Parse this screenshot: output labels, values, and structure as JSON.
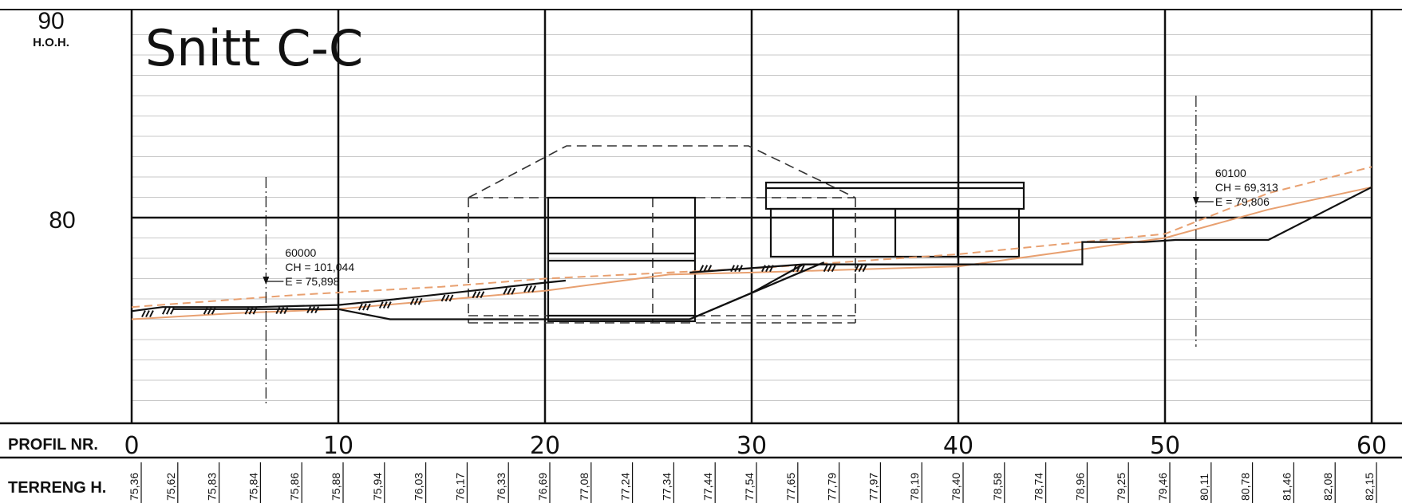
{
  "title": "Snitt C-C",
  "y_axis": {
    "top_value": "90",
    "unit": "H.O.H.",
    "mid_value": "80",
    "range": [
      70,
      90
    ]
  },
  "x_axis": {
    "label": "PROFIL NR.",
    "range": [
      0,
      60
    ],
    "ticks": [
      "0",
      "10",
      "20",
      "30",
      "40",
      "50",
      "60"
    ]
  },
  "terrain_row": {
    "label": "TERRENG H.",
    "values": [
      "75,36",
      "75,62",
      "75,83",
      "75,84",
      "75,86",
      "75,88",
      "75,94",
      "76,03",
      "76,17",
      "76,33",
      "76,69",
      "77,08",
      "77,24",
      "77,34",
      "77,44",
      "77,54",
      "77,65",
      "77,79",
      "77,97",
      "78,19",
      "78,40",
      "78,58",
      "78,74",
      "78,96",
      "79,25",
      "79,46",
      "80,11",
      "80,78",
      "81,46",
      "82,08",
      "82,15"
    ]
  },
  "annotations": [
    {
      "name": "marker-60000",
      "station": 6.5,
      "lines": [
        "60000",
        "CH = 101,044",
        "E = 75,898"
      ]
    },
    {
      "name": "marker-60100",
      "station": 51.5,
      "lines": [
        "60100",
        "CH = 69,313",
        "E = 79,806"
      ]
    }
  ],
  "colors": {
    "line": "#111111",
    "grid": "#c8c8c8",
    "terrain_orange": "#e8a070",
    "terrain_orange_dashed": "#e8a070"
  },
  "profiles": {
    "existing_ground": [
      [
        0,
        75.4
      ],
      [
        1.5,
        75.6
      ],
      [
        3,
        75.6
      ],
      [
        6,
        75.6
      ],
      [
        10,
        75.7
      ],
      [
        12,
        75.9
      ],
      [
        20,
        76.8
      ],
      [
        21,
        76.9
      ]
    ],
    "orange_solid": [
      [
        0,
        75.0
      ],
      [
        5,
        75.3
      ],
      [
        10,
        75.5
      ],
      [
        20,
        76.4
      ],
      [
        26,
        77.2
      ],
      [
        30,
        77.3
      ],
      [
        40,
        77.6
      ],
      [
        50,
        79.0
      ],
      [
        55,
        80.4
      ],
      [
        60,
        81.5
      ]
    ],
    "orange_dashed": [
      [
        0,
        75.6
      ],
      [
        8,
        76.2
      ],
      [
        15,
        76.6
      ],
      [
        20,
        77.0
      ],
      [
        30,
        77.5
      ],
      [
        40,
        78.2
      ],
      [
        50,
        79.2
      ],
      [
        55,
        81.2
      ],
      [
        60,
        82.5
      ]
    ],
    "lower_ground": [
      [
        2,
        75.5
      ],
      [
        10,
        75.5
      ],
      [
        12.5,
        75.0
      ],
      [
        20,
        75.0
      ],
      [
        27,
        75.0
      ],
      [
        30,
        76.3
      ],
      [
        32.5,
        77.7
      ],
      [
        36,
        77.7
      ],
      [
        46,
        77.7
      ],
      [
        46,
        78.8
      ],
      [
        49,
        78.8
      ],
      [
        50.5,
        78.9
      ],
      [
        55,
        78.9
      ],
      [
        60,
        81.5
      ]
    ]
  }
}
